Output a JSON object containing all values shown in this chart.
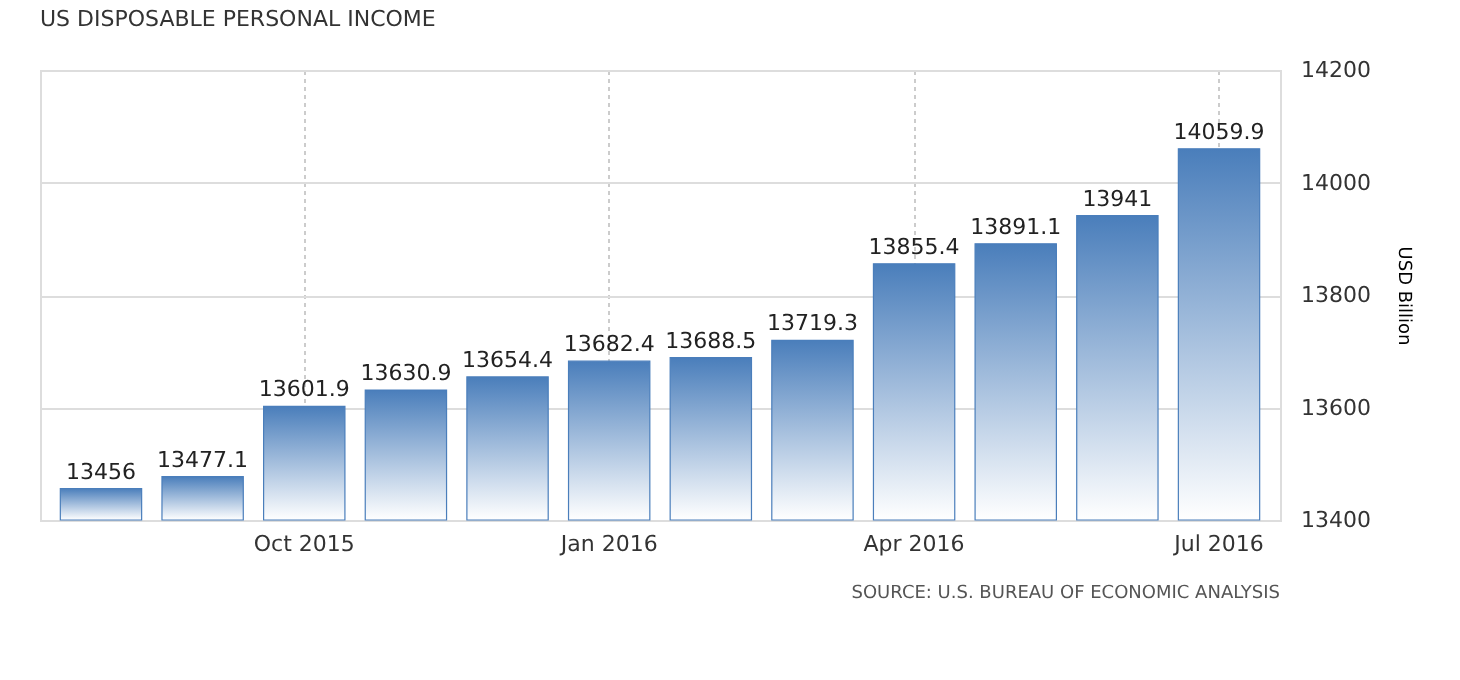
{
  "chart_data": {
    "type": "bar",
    "title": "US DISPOSABLE PERSONAL INCOME",
    "categories": [
      null,
      null,
      "Oct 2015",
      null,
      null,
      "Jan 2016",
      null,
      null,
      "Apr 2016",
      null,
      null,
      "Jul 2016"
    ],
    "values": [
      13456,
      13477.1,
      13601.9,
      13630.9,
      13654.4,
      13682.4,
      13688.5,
      13719.3,
      13855.4,
      13891.1,
      13941,
      14059.9
    ],
    "color": "#4a7ebb",
    "data_labels": true,
    "ylabel": "USD Billion",
    "ylim": [
      13400,
      14200
    ],
    "yticks": [
      13400,
      13600,
      13800,
      14000,
      14200
    ],
    "grid": true,
    "annotations": [
      "SOURCE: U.S. BUREAU OF ECONOMIC ANALYSIS"
    ]
  }
}
